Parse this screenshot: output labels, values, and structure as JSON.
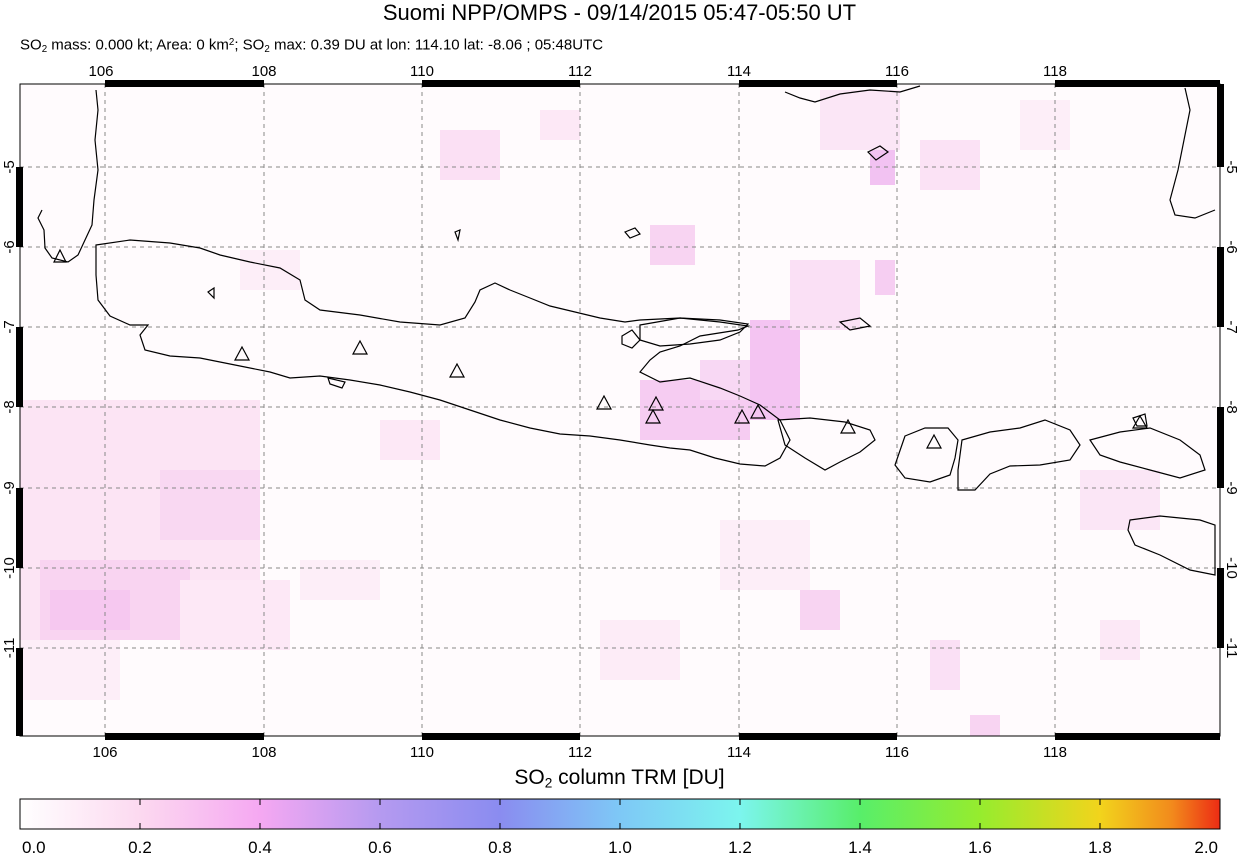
{
  "title": "Suomi NPP/OMPS - 09/14/2015 05:47-05:50 UT",
  "subtitle": {
    "so2_mass": "0.000 kt",
    "area": "0 km",
    "so2_max": "0.39 DU",
    "lon": "114.10",
    "lat": "-8.06",
    "time": "05:48UTC"
  },
  "map": {
    "lon_ticks": [
      "106",
      "108",
      "110",
      "112",
      "114",
      "116",
      "118"
    ],
    "lat_ticks": [
      "-5",
      "-6",
      "-7",
      "-8",
      "-9",
      "-10",
      "-11"
    ],
    "lon_range": [
      105,
      120
    ],
    "lat_range": [
      -12,
      -4
    ]
  },
  "colorbar": {
    "title": "column TRM [DU]",
    "ticks": [
      "0.0",
      "0.2",
      "0.4",
      "0.6",
      "0.8",
      "1.0",
      "1.2",
      "1.4",
      "1.6",
      "1.8",
      "2.0"
    ],
    "colors": [
      "#ffffff",
      "#fcd9f0",
      "#f5a8f2",
      "#b59af0",
      "#8a8cf0",
      "#7ec8f6",
      "#7cf5ee",
      "#58ee6a",
      "#96ec2e",
      "#f2d41c",
      "#f28a1c",
      "#ec2c14"
    ]
  }
}
